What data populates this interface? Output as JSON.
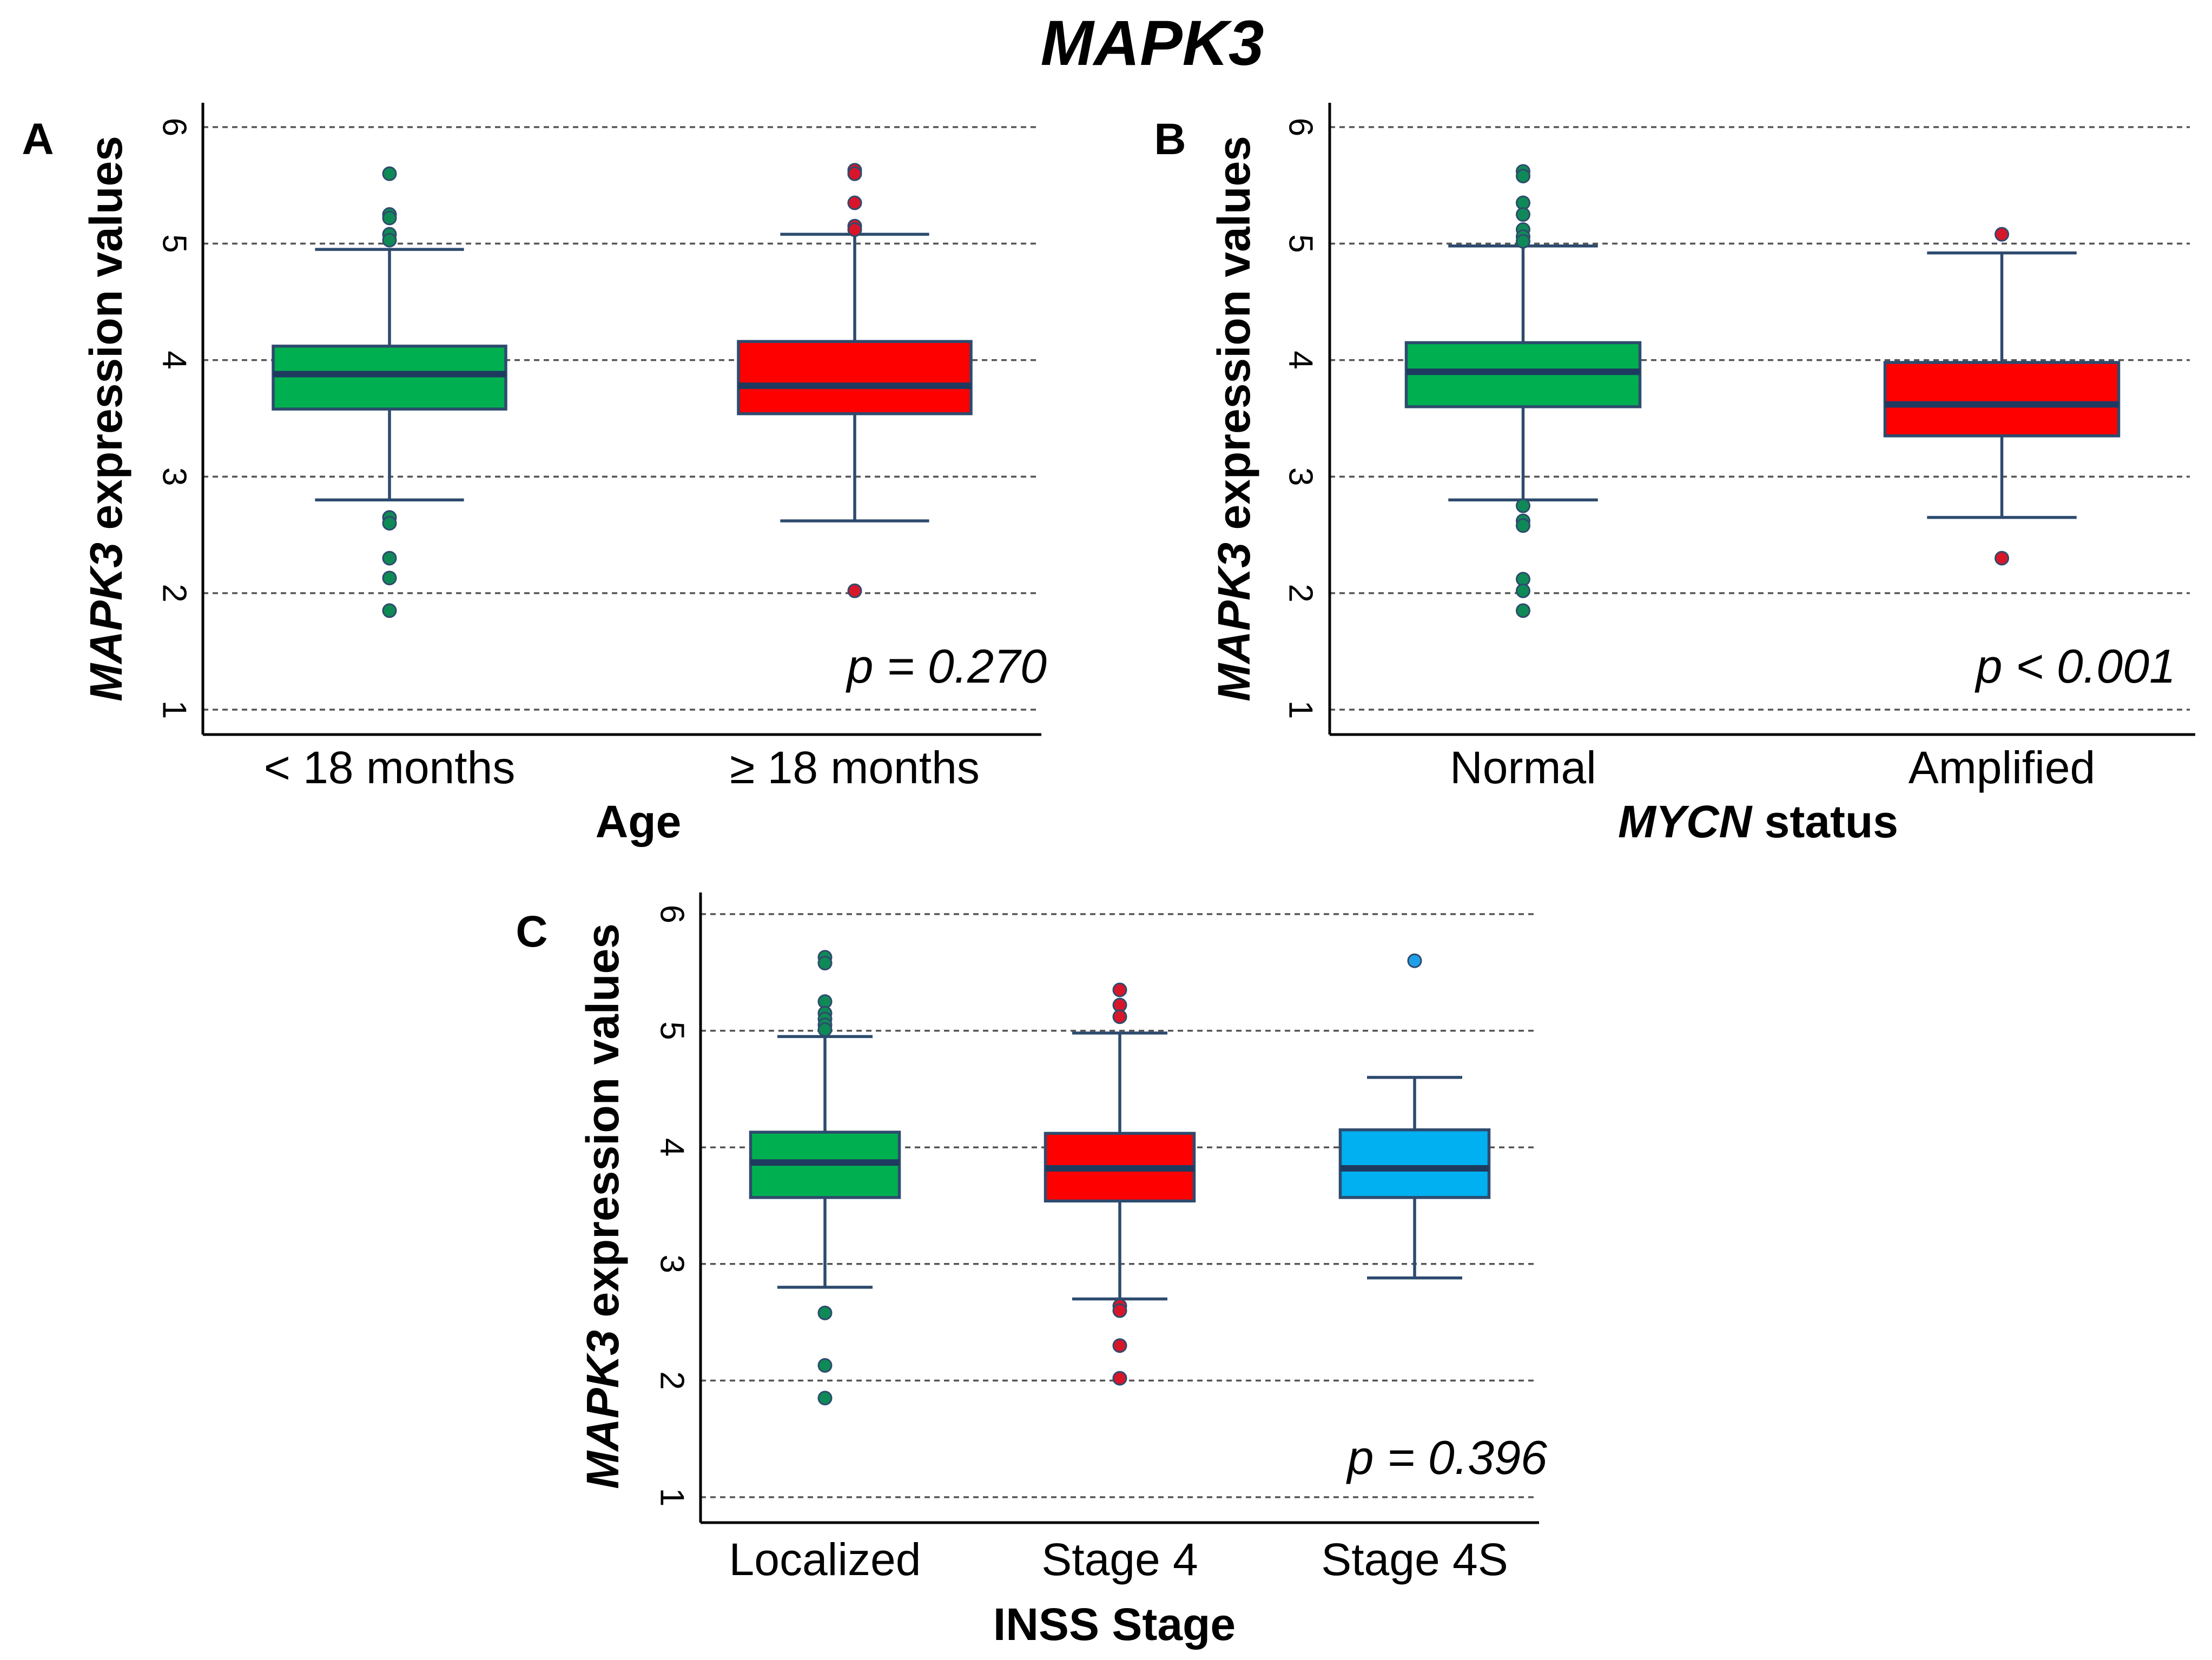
{
  "figure": {
    "title": "MAPK3",
    "colors": {
      "green": "#00b050",
      "red": "#ff0000",
      "blue": "#00b0f0",
      "outline": "#2e4b6e",
      "green_outlier": "#0f8a56",
      "red_outlier": "#d8162a",
      "blue_outlier": "#1ea0e8"
    }
  },
  "chart_data": [
    {
      "type": "box",
      "panel": "A",
      "ylabel_italic": "MAPK3",
      "ylabel_rest": " expression values",
      "xlabel": "Age",
      "xlabel_italic": "",
      "ylim": [
        1,
        6
      ],
      "yticks": [
        "1",
        "2",
        "3",
        "4",
        "5",
        "6"
      ],
      "grid": true,
      "pvalue": "p = 0.270",
      "categories": [
        "< 18 months",
        "≥ 18 months"
      ],
      "groups": [
        {
          "name": "< 18 months",
          "color": "green",
          "whisker_low": 2.8,
          "q1": 3.58,
          "median": 3.88,
          "q3": 4.12,
          "whisker_high": 4.95,
          "outliers": [
            5.6,
            5.25,
            5.22,
            5.08,
            5.03,
            2.65,
            2.6,
            2.3,
            2.13,
            1.85
          ]
        },
        {
          "name": "≥ 18 months",
          "color": "red",
          "whisker_low": 2.62,
          "q1": 3.54,
          "median": 3.78,
          "q3": 4.16,
          "whisker_high": 5.08,
          "outliers": [
            5.63,
            5.6,
            5.35,
            5.15,
            5.12,
            2.02
          ]
        }
      ]
    },
    {
      "type": "box",
      "panel": "B",
      "ylabel_italic": "MAPK3",
      "ylabel_rest": " expression values",
      "xlabel": " status",
      "xlabel_italic": "MYCN",
      "ylim": [
        1,
        6
      ],
      "yticks": [
        "1",
        "2",
        "3",
        "4",
        "5",
        "6"
      ],
      "grid": true,
      "pvalue": "p < 0.001",
      "categories": [
        "Normal",
        "Amplified"
      ],
      "groups": [
        {
          "name": "Normal",
          "color": "green",
          "whisker_low": 2.8,
          "q1": 3.6,
          "median": 3.9,
          "q3": 4.15,
          "whisker_high": 4.98,
          "outliers": [
            5.62,
            5.58,
            5.35,
            5.25,
            5.12,
            5.06,
            5.02,
            2.75,
            2.62,
            2.58,
            2.12,
            2.02,
            1.85
          ]
        },
        {
          "name": "Amplified",
          "color": "red",
          "whisker_low": 2.65,
          "q1": 3.35,
          "median": 3.62,
          "q3": 3.98,
          "whisker_high": 4.92,
          "outliers": [
            5.08,
            2.3
          ]
        }
      ]
    },
    {
      "type": "box",
      "panel": "C",
      "ylabel_italic": "MAPK3",
      "ylabel_rest": " expression values",
      "xlabel": "INSS Stage",
      "xlabel_italic": "",
      "ylim": [
        1,
        6
      ],
      "yticks": [
        "1",
        "2",
        "3",
        "4",
        "5",
        "6"
      ],
      "grid": true,
      "pvalue": "p = 0.396",
      "categories": [
        "Localized",
        "Stage 4",
        "Stage 4S"
      ],
      "groups": [
        {
          "name": "Localized",
          "color": "green",
          "whisker_low": 2.8,
          "q1": 3.57,
          "median": 3.87,
          "q3": 4.13,
          "whisker_high": 4.95,
          "outliers": [
            5.63,
            5.58,
            5.25,
            5.15,
            5.1,
            5.05,
            5.01,
            2.58,
            2.13,
            1.85
          ]
        },
        {
          "name": "Stage 4",
          "color": "red",
          "whisker_low": 2.7,
          "q1": 3.54,
          "median": 3.82,
          "q3": 4.12,
          "whisker_high": 4.98,
          "outliers": [
            5.35,
            5.22,
            5.12,
            2.64,
            2.6,
            2.3,
            2.02
          ]
        },
        {
          "name": "Stage 4S",
          "color": "blue",
          "whisker_low": 2.88,
          "q1": 3.57,
          "median": 3.82,
          "q3": 4.15,
          "whisker_high": 4.6,
          "outliers": [
            5.6
          ]
        }
      ]
    }
  ]
}
